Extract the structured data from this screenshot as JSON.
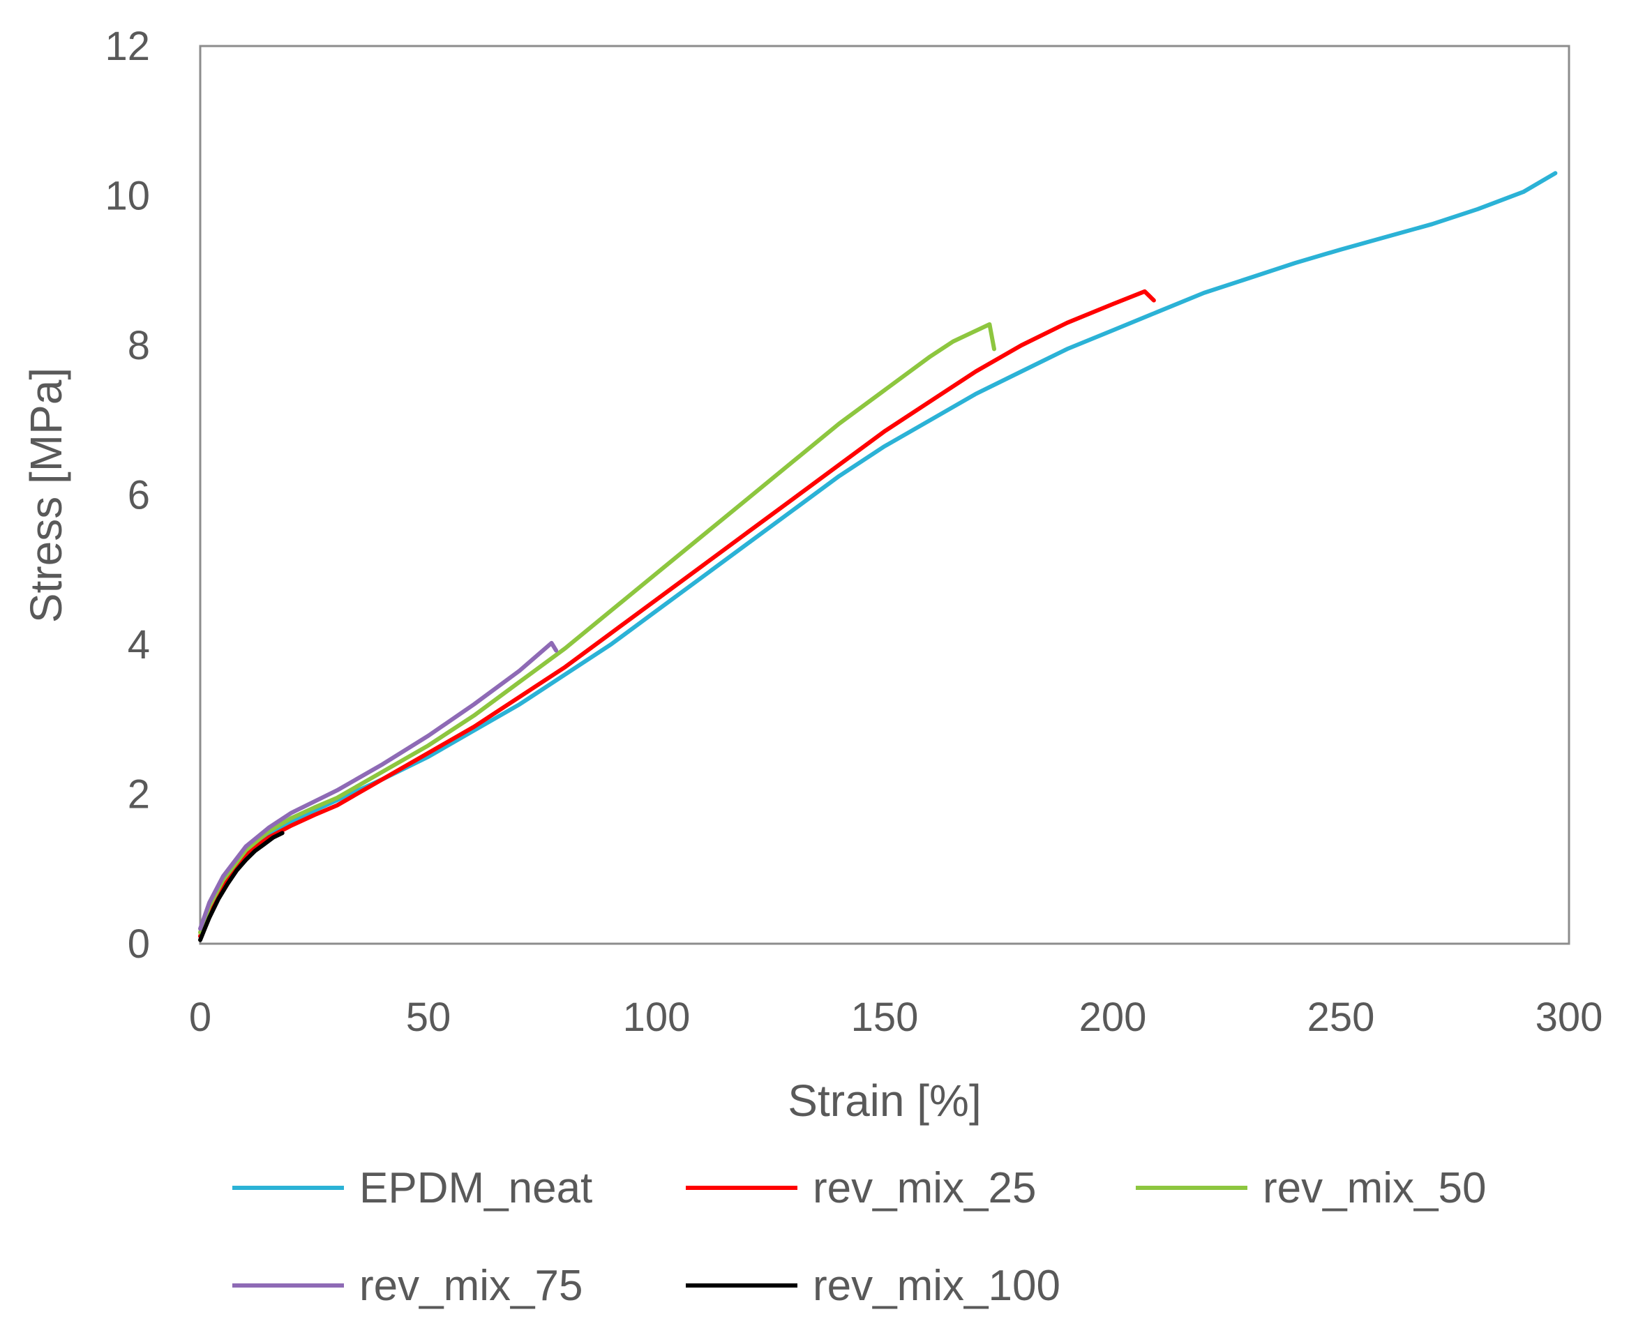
{
  "chart_data": {
    "type": "line",
    "title": "",
    "xlabel": "Strain [%]",
    "ylabel": "Stress [MPa]",
    "xlim": [
      0,
      300
    ],
    "ylim": [
      0,
      12
    ],
    "x_ticks": [
      "0",
      "50",
      "100",
      "150",
      "200",
      "250",
      "300"
    ],
    "y_ticks": [
      "0",
      "2",
      "4",
      "6",
      "8",
      "10",
      "12"
    ],
    "grid": false,
    "legend_position": "bottom",
    "series": [
      {
        "name": "EPDM_neat",
        "color": "#2BB2D6",
        "points": [
          [
            0,
            0.1
          ],
          [
            2,
            0.45
          ],
          [
            5,
            0.8
          ],
          [
            10,
            1.2
          ],
          [
            15,
            1.45
          ],
          [
            20,
            1.62
          ],
          [
            25,
            1.78
          ],
          [
            30,
            1.92
          ],
          [
            40,
            2.2
          ],
          [
            50,
            2.5
          ],
          [
            60,
            2.85
          ],
          [
            70,
            3.2
          ],
          [
            80,
            3.6
          ],
          [
            90,
            4.0
          ],
          [
            100,
            4.45
          ],
          [
            110,
            4.9
          ],
          [
            120,
            5.35
          ],
          [
            130,
            5.8
          ],
          [
            140,
            6.25
          ],
          [
            150,
            6.65
          ],
          [
            160,
            7.0
          ],
          [
            170,
            7.35
          ],
          [
            180,
            7.65
          ],
          [
            190,
            7.95
          ],
          [
            200,
            8.2
          ],
          [
            210,
            8.45
          ],
          [
            220,
            8.7
          ],
          [
            230,
            8.9
          ],
          [
            240,
            9.1
          ],
          [
            250,
            9.28
          ],
          [
            260,
            9.45
          ],
          [
            270,
            9.62
          ],
          [
            280,
            9.82
          ],
          [
            290,
            10.05
          ],
          [
            297,
            10.3
          ]
        ]
      },
      {
        "name": "rev_mix_25",
        "color": "#FF0000",
        "points": [
          [
            0,
            0.1
          ],
          [
            2,
            0.45
          ],
          [
            5,
            0.8
          ],
          [
            10,
            1.2
          ],
          [
            15,
            1.42
          ],
          [
            20,
            1.58
          ],
          [
            25,
            1.72
          ],
          [
            30,
            1.85
          ],
          [
            40,
            2.2
          ],
          [
            50,
            2.55
          ],
          [
            60,
            2.9
          ],
          [
            70,
            3.3
          ],
          [
            80,
            3.7
          ],
          [
            90,
            4.15
          ],
          [
            100,
            4.6
          ],
          [
            110,
            5.05
          ],
          [
            120,
            5.5
          ],
          [
            130,
            5.95
          ],
          [
            140,
            6.4
          ],
          [
            150,
            6.85
          ],
          [
            160,
            7.25
          ],
          [
            170,
            7.65
          ],
          [
            180,
            8.0
          ],
          [
            190,
            8.3
          ],
          [
            200,
            8.55
          ],
          [
            207,
            8.72
          ],
          [
            209,
            8.6
          ]
        ]
      },
      {
        "name": "rev_mix_50",
        "color": "#8DC63F",
        "points": [
          [
            0,
            0.15
          ],
          [
            2,
            0.5
          ],
          [
            5,
            0.85
          ],
          [
            10,
            1.25
          ],
          [
            15,
            1.5
          ],
          [
            20,
            1.68
          ],
          [
            25,
            1.82
          ],
          [
            30,
            1.95
          ],
          [
            40,
            2.3
          ],
          [
            50,
            2.65
          ],
          [
            60,
            3.05
          ],
          [
            70,
            3.5
          ],
          [
            80,
            3.95
          ],
          [
            90,
            4.45
          ],
          [
            100,
            4.95
          ],
          [
            110,
            5.45
          ],
          [
            120,
            5.95
          ],
          [
            130,
            6.45
          ],
          [
            140,
            6.95
          ],
          [
            150,
            7.4
          ],
          [
            160,
            7.85
          ],
          [
            165,
            8.05
          ],
          [
            173,
            8.28
          ],
          [
            174,
            7.95
          ]
        ]
      },
      {
        "name": "rev_mix_75",
        "color": "#8E6AB5",
        "points": [
          [
            0,
            0.2
          ],
          [
            2,
            0.55
          ],
          [
            5,
            0.9
          ],
          [
            10,
            1.3
          ],
          [
            15,
            1.55
          ],
          [
            20,
            1.75
          ],
          [
            25,
            1.9
          ],
          [
            30,
            2.05
          ],
          [
            40,
            2.4
          ],
          [
            50,
            2.78
          ],
          [
            60,
            3.2
          ],
          [
            70,
            3.65
          ],
          [
            77,
            4.02
          ],
          [
            78,
            3.92
          ]
        ]
      },
      {
        "name": "rev_mix_100",
        "color": "#000000",
        "points": [
          [
            0,
            0.05
          ],
          [
            1,
            0.2
          ],
          [
            2,
            0.35
          ],
          [
            4,
            0.6
          ],
          [
            6,
            0.8
          ],
          [
            8,
            0.98
          ],
          [
            10,
            1.12
          ],
          [
            12,
            1.24
          ],
          [
            14,
            1.33
          ],
          [
            16,
            1.42
          ],
          [
            18,
            1.48
          ]
        ]
      }
    ]
  }
}
